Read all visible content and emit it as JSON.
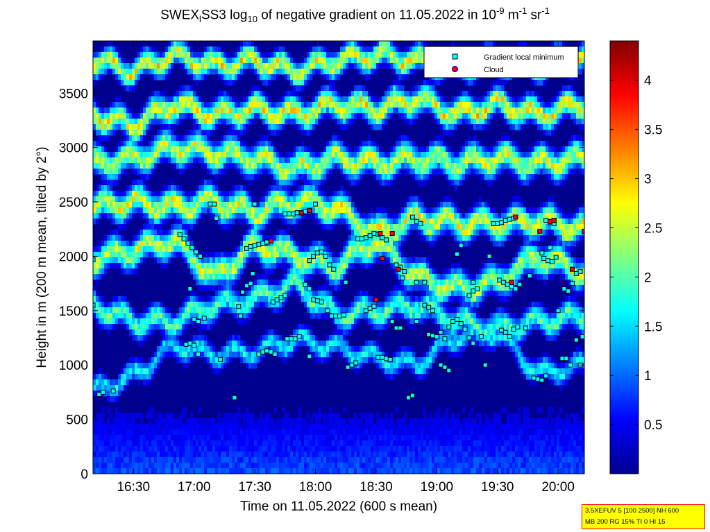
{
  "title": {
    "prefix": "SWEX",
    "sub1": "l",
    "mid": "SS3 log",
    "sub2": "10",
    "rest": " of negative gradient on 11.05.2022 in 10",
    "sup1": "-9",
    "unit1": " m",
    "sup2": "-1",
    "unit2": " sr",
    "sup3": "-1"
  },
  "info_box": {
    "line1": "3.5XEFUV 5 [100 2500] NH 600",
    "line2": "MB 200 RG 15% TI 0 HI 15"
  },
  "colors": {
    "local_minimum_marker": "#00ffff",
    "cloud_marker": "#ff0000",
    "colormap": "jet"
  },
  "chart_data": {
    "type": "heatmap",
    "xlabel": "Time on 11.05.2022 (600 s mean)",
    "ylabel": "Height in m (200 m mean, tilted by 2°)",
    "x_ticks": [
      "16:30",
      "17:00",
      "17:30",
      "18:00",
      "18:30",
      "19:00",
      "19:30",
      "20:00"
    ],
    "x_tick_minutes": [
      990,
      1020,
      1050,
      1080,
      1110,
      1140,
      1170,
      1200
    ],
    "xlim_minutes": [
      970,
      1213
    ],
    "y_ticks": [
      0,
      500,
      1000,
      1500,
      2000,
      2500,
      3000,
      3500
    ],
    "ylim": [
      0,
      3980
    ],
    "colorbar": {
      "range": [
        0,
        4.4
      ],
      "ticks": [
        0.5,
        1,
        1.5,
        2,
        2.5,
        3,
        3.5,
        4
      ],
      "tick_labels": [
        "0.5",
        "1",
        "1.5",
        "2",
        "2.5",
        "3",
        "3.5",
        "4"
      ]
    },
    "legend": {
      "position": "top-right",
      "entries": [
        "Gradient local minimum",
        "Cloud"
      ]
    },
    "layers": [
      {
        "name": "layer1",
        "t": [
          970,
          990,
          1010,
          1030,
          1050,
          1070,
          1090,
          1110,
          1130,
          1150,
          1170,
          1190,
          1213
        ],
        "h": [
          760,
          900,
          1180,
          1100,
          1120,
          1230,
          1160,
          1060,
          1000,
          1260,
          1300,
          920,
          1000
        ]
      },
      {
        "name": "layer2",
        "t": [
          970,
          990,
          1010,
          1030,
          1050,
          1070,
          1090,
          1110,
          1130,
          1150,
          1170,
          1190,
          1213
        ],
        "h": [
          1550,
          1400,
          1400,
          1550,
          1600,
          1750,
          1460,
          1500,
          1550,
          1400,
          1330,
          1400,
          1450
        ]
      },
      {
        "name": "layer3",
        "t": [
          970,
          990,
          1010,
          1030,
          1050,
          1070,
          1090,
          1110,
          1130,
          1150,
          1170,
          1190,
          1213
        ],
        "h": [
          1980,
          2050,
          2150,
          1800,
          2100,
          2000,
          1900,
          2150,
          1800,
          1700,
          1760,
          2000,
          1850
        ]
      },
      {
        "name": "layer4",
        "t": [
          970,
          990,
          1010,
          1030,
          1050,
          1070,
          1090,
          1110,
          1130,
          1150,
          1170,
          1190,
          1213
        ],
        "h": [
          2450,
          2500,
          2450,
          2500,
          2400,
          2500,
          2450,
          2200,
          2350,
          2300,
          2300,
          2320,
          2250
        ]
      },
      {
        "name": "layer5",
        "t": [
          970,
          990,
          1010,
          1030,
          1050,
          1070,
          1090,
          1110,
          1130,
          1150,
          1170,
          1190,
          1213
        ],
        "h": [
          2850,
          2900,
          3000,
          2950,
          2900,
          2800,
          2900,
          2850,
          2900,
          2850,
          2900,
          2850,
          2900
        ]
      },
      {
        "name": "layer6",
        "t": [
          970,
          990,
          1010,
          1030,
          1050,
          1070,
          1090,
          1110,
          1130,
          1150,
          1170,
          1190,
          1213
        ],
        "h": [
          3300,
          3200,
          3400,
          3300,
          3350,
          3300,
          3400,
          3350,
          3450,
          3300,
          3400,
          3300,
          3400
        ]
      },
      {
        "name": "layer7",
        "t": [
          970,
          990,
          1010,
          1030,
          1050,
          1070,
          1090,
          1110,
          1130,
          1150,
          1170,
          1190,
          1213
        ],
        "h": [
          3800,
          3700,
          3850,
          3750,
          3800,
          3700,
          3800,
          3850,
          3800,
          3750,
          3800,
          3750,
          3850
        ]
      }
    ],
    "local_minima": [
      [
        970,
        1550
      ],
      [
        970,
        1970
      ],
      [
        973,
        730
      ],
      [
        975,
        750
      ],
      [
        980,
        760
      ],
      [
        1016,
        1190
      ],
      [
        1018,
        1200
      ],
      [
        1020,
        1180
      ],
      [
        1022,
        1100
      ],
      [
        1013,
        2200
      ],
      [
        1015,
        2160
      ],
      [
        1017,
        2120
      ],
      [
        1019,
        2080
      ],
      [
        1021,
        2040
      ],
      [
        1023,
        2000
      ],
      [
        1018,
        1700
      ],
      [
        1020,
        1420
      ],
      [
        1022,
        1400
      ],
      [
        1025,
        1430
      ],
      [
        1028,
        2480
      ],
      [
        1030,
        2480
      ],
      [
        1031,
        2350
      ],
      [
        1033,
        1050
      ],
      [
        1040,
        700
      ],
      [
        1042,
        1540
      ],
      [
        1043,
        1450
      ],
      [
        1044,
        1670
      ],
      [
        1046,
        1730
      ],
      [
        1048,
        1750
      ],
      [
        1049,
        1840
      ],
      [
        1046,
        2070
      ],
      [
        1048,
        2090
      ],
      [
        1050,
        2100
      ],
      [
        1052,
        2110
      ],
      [
        1054,
        2120
      ],
      [
        1056,
        2130
      ],
      [
        1058,
        2140
      ],
      [
        1050,
        2480
      ],
      [
        1052,
        1100
      ],
      [
        1054,
        1120
      ],
      [
        1056,
        1130
      ],
      [
        1058,
        1120
      ],
      [
        1060,
        1100
      ],
      [
        1059,
        1580
      ],
      [
        1061,
        1600
      ],
      [
        1063,
        1620
      ],
      [
        1065,
        1640
      ],
      [
        1065,
        2390
      ],
      [
        1067,
        2390
      ],
      [
        1069,
        2390
      ],
      [
        1071,
        2400
      ],
      [
        1073,
        2400
      ],
      [
        1075,
        2410
      ],
      [
        1077,
        2410
      ],
      [
        1066,
        1240
      ],
      [
        1068,
        1240
      ],
      [
        1070,
        1240
      ],
      [
        1072,
        1260
      ],
      [
        1075,
        1740
      ],
      [
        1077,
        1700
      ],
      [
        1079,
        1600
      ],
      [
        1081,
        1590
      ],
      [
        1083,
        1580
      ],
      [
        1077,
        1960
      ],
      [
        1079,
        2000
      ],
      [
        1081,
        2030
      ],
      [
        1083,
        2040
      ],
      [
        1085,
        2000
      ],
      [
        1087,
        1920
      ],
      [
        1089,
        1880
      ],
      [
        1077,
        1080
      ],
      [
        1080,
        2480
      ],
      [
        1086,
        1500
      ],
      [
        1088,
        1450
      ],
      [
        1090,
        1450
      ],
      [
        1092,
        1450
      ],
      [
        1094,
        1460
      ],
      [
        1095,
        1760
      ],
      [
        1096,
        980
      ],
      [
        1098,
        1000
      ],
      [
        1100,
        1020
      ],
      [
        1101,
        2160
      ],
      [
        1103,
        2160
      ],
      [
        1105,
        2170
      ],
      [
        1107,
        2190
      ],
      [
        1109,
        2210
      ],
      [
        1111,
        2200
      ],
      [
        1105,
        1500
      ],
      [
        1107,
        1520
      ],
      [
        1109,
        1540
      ],
      [
        1111,
        1070
      ],
      [
        1113,
        1070
      ],
      [
        1115,
        1060
      ],
      [
        1117,
        1050
      ],
      [
        1113,
        2170
      ],
      [
        1115,
        2150
      ],
      [
        1118,
        1400
      ],
      [
        1120,
        1340
      ],
      [
        1122,
        1340
      ],
      [
        1123,
        1800
      ],
      [
        1120,
        1920
      ],
      [
        1122,
        1900
      ],
      [
        1124,
        1860
      ],
      [
        1126,
        700
      ],
      [
        1128,
        720
      ],
      [
        1128,
        2360
      ],
      [
        1130,
        2320
      ],
      [
        1132,
        2300
      ],
      [
        1134,
        1550
      ],
      [
        1136,
        1530
      ],
      [
        1138,
        1500
      ],
      [
        1130,
        1400
      ],
      [
        1130,
        1760
      ],
      [
        1134,
        1760
      ],
      [
        1136,
        1280
      ],
      [
        1138,
        1270
      ],
      [
        1140,
        1260
      ],
      [
        1142,
        1300
      ],
      [
        1144,
        1240
      ],
      [
        1146,
        1350
      ],
      [
        1148,
        1400
      ],
      [
        1150,
        1420
      ],
      [
        1152,
        1380
      ],
      [
        1154,
        1330
      ],
      [
        1156,
        1250
      ],
      [
        1158,
        1200
      ],
      [
        1142,
        1000
      ],
      [
        1144,
        980
      ],
      [
        1146,
        950
      ],
      [
        1150,
        2020
      ],
      [
        1152,
        2100
      ],
      [
        1158,
        1760
      ],
      [
        1156,
        1640
      ],
      [
        1158,
        1680
      ],
      [
        1160,
        1700
      ],
      [
        1162,
        1260
      ],
      [
        1164,
        1000
      ],
      [
        1166,
        2000
      ],
      [
        1168,
        2300
      ],
      [
        1170,
        2300
      ],
      [
        1172,
        2310
      ],
      [
        1174,
        2330
      ],
      [
        1176,
        2340
      ],
      [
        1178,
        2350
      ],
      [
        1171,
        1780
      ],
      [
        1173,
        1760
      ],
      [
        1175,
        1740
      ],
      [
        1177,
        1720
      ],
      [
        1179,
        1700
      ],
      [
        1181,
        1740
      ],
      [
        1172,
        1320
      ],
      [
        1174,
        1300
      ],
      [
        1176,
        1260
      ],
      [
        1178,
        1330
      ],
      [
        1180,
        1350
      ],
      [
        1184,
        1340
      ],
      [
        1186,
        1820
      ],
      [
        1188,
        880
      ],
      [
        1190,
        870
      ],
      [
        1192,
        860
      ],
      [
        1194,
        900
      ],
      [
        1192,
        2030
      ],
      [
        1193,
        1980
      ],
      [
        1195,
        1960
      ],
      [
        1197,
        1950
      ],
      [
        1199,
        1990
      ],
      [
        1196,
        2080
      ],
      [
        1198,
        2300
      ],
      [
        1194,
        2330
      ],
      [
        1196,
        2310
      ],
      [
        1198,
        2330
      ],
      [
        1200,
        1500
      ],
      [
        1202,
        1060
      ],
      [
        1204,
        1060
      ],
      [
        1206,
        1000
      ],
      [
        1203,
        1700
      ],
      [
        1205,
        1680
      ],
      [
        1207,
        1750
      ],
      [
        1209,
        1840
      ],
      [
        1211,
        1860
      ],
      [
        1211,
        1000
      ],
      [
        1209,
        1230
      ],
      [
        1212,
        1260
      ]
    ],
    "clouds": [
      [
        1077,
        2420
      ],
      [
        1073,
        2400
      ],
      [
        1058,
        2140
      ],
      [
        1112,
        2210
      ],
      [
        1118,
        2210
      ],
      [
        1113,
        1980
      ],
      [
        1121,
        1880
      ],
      [
        1110,
        1600
      ],
      [
        1179,
        2360
      ],
      [
        1177,
        1760
      ],
      [
        1196,
        2320
      ],
      [
        1198,
        2330
      ],
      [
        1191,
        2230
      ],
      [
        1207,
        1880
      ],
      [
        1213,
        2230
      ]
    ]
  }
}
